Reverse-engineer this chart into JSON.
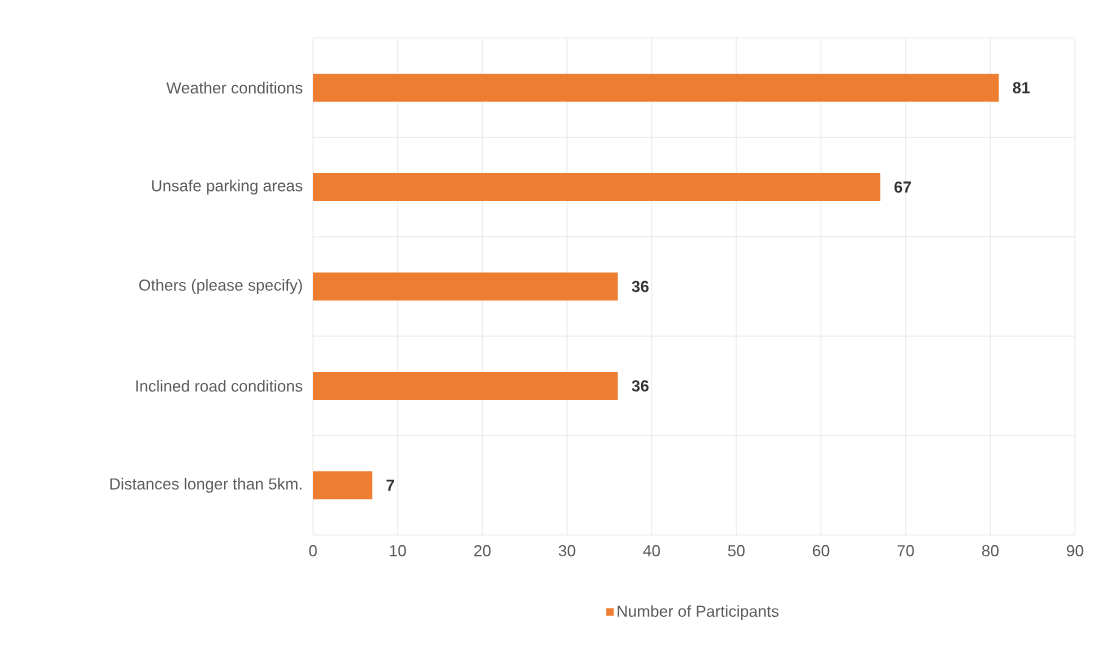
{
  "chart_data": {
    "type": "bar",
    "orientation": "horizontal",
    "categories": [
      "Weather conditions",
      "Unsafe parking areas",
      "Others (please specify)",
      "Inclined road conditions",
      "Distances longer than 5km."
    ],
    "series": [
      {
        "name": "Number of Participants",
        "color": "#ed7d31",
        "values": [
          81,
          67,
          36,
          36,
          7
        ]
      }
    ],
    "xlim": [
      0,
      90
    ],
    "xticks": [
      0,
      10,
      20,
      30,
      40,
      50,
      60,
      70,
      80,
      90
    ],
    "grid": true,
    "legend": "bottom",
    "data_labels": true
  }
}
